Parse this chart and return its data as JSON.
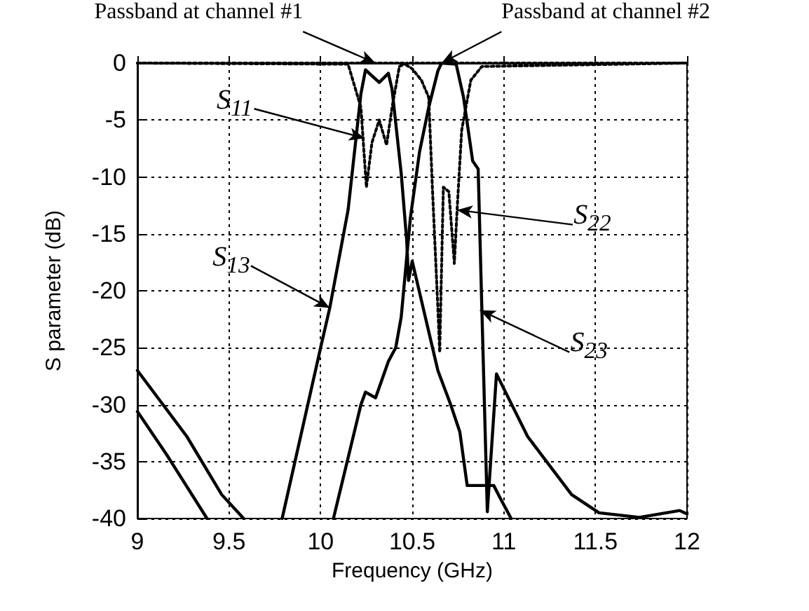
{
  "chart_data": {
    "type": "line",
    "xlabel": "Frequency (GHz)",
    "ylabel": "S parameter (dB)",
    "xlim": [
      9,
      12
    ],
    "xticks": [
      9,
      9.5,
      10,
      10.5,
      11,
      11.5,
      12
    ],
    "ylim": [
      -40,
      0
    ],
    "yticks": [
      0,
      -5,
      -10,
      -15,
      -20,
      -25,
      -30,
      -35,
      -40
    ],
    "grid": true,
    "marker": "none",
    "series": [
      {
        "color": "#000000",
        "line_style": "dotted",
        "x": [
          9,
          10.15,
          10.22,
          10.25,
          10.28,
          10.32,
          10.36,
          10.39,
          10.43,
          10.47,
          12
        ],
        "values": [
          0,
          -0.1,
          -3.9,
          -10.9,
          -7,
          -5,
          -7.2,
          -3.9,
          -0.3,
          0,
          0
        ]
      },
      {
        "color": "#000000",
        "line_style": "dotted",
        "x": [
          9,
          10.45,
          10.5,
          10.55,
          10.59,
          10.61,
          10.64,
          10.65,
          10.67,
          10.7,
          10.73,
          10.745,
          10.77,
          10.82,
          10.88,
          12
        ],
        "values": [
          0,
          0,
          -0.5,
          -1.5,
          -3,
          -10.9,
          -21.5,
          -25.4,
          -10.9,
          -11.3,
          -17.6,
          -12.9,
          -5.9,
          -1.5,
          -0.3,
          0
        ]
      },
      {
        "color": "#000000",
        "line_style": "solid",
        "x": [
          9,
          9.16,
          9.38,
          9.6,
          9.79,
          10.0,
          10.05,
          10.15,
          10.22,
          10.245,
          10.32,
          10.37,
          10.39,
          10.44,
          10.47,
          10.48,
          10.5,
          10.64,
          10.71,
          10.76,
          10.8,
          10.945,
          10.98,
          11.04
        ],
        "values": [
          -30.6,
          -34.4,
          -40,
          null,
          -40,
          -25,
          -21.5,
          -12.9,
          -2.7,
          -0.6,
          -1.7,
          -0.9,
          -2.3,
          -9.7,
          -15.6,
          -19.1,
          -17.4,
          -27,
          -30,
          -32.4,
          -37.1,
          -37.1,
          -38.2,
          -40
        ]
      },
      {
        "color": "#000000",
        "line_style": "solid",
        "x": [
          9,
          9.27,
          9.46,
          9.58,
          9.8,
          10.07,
          10.22,
          10.245,
          10.3,
          10.37,
          10.41,
          10.44,
          10.49,
          10.54,
          10.59,
          10.64,
          10.66,
          10.74,
          10.78,
          10.83,
          10.86,
          10.88,
          10.91,
          10.96,
          11.13,
          11.37,
          11.52,
          11.74,
          11.96,
          12
        ],
        "values": [
          -27,
          -32.8,
          -37.9,
          -40,
          null,
          -40,
          -30,
          -28.9,
          -29.4,
          -26.2,
          -25,
          -22.3,
          -13.6,
          -7.8,
          -3.9,
          -0.7,
          0,
          -0.1,
          -3,
          -8.6,
          -9.3,
          -21.5,
          -39.4,
          -27.3,
          -32.8,
          -37.9,
          -39.5,
          -39.9,
          -39.3,
          -39.6
        ]
      }
    ],
    "annotations": [
      {
        "text": "Passband at channel #1",
        "x": 10.3,
        "y": 0
      },
      {
        "text": "Passband at channel #2",
        "x": 10.66,
        "y": 0
      },
      {
        "text": "S$_{11}$",
        "x": 10.24,
        "y": -6.6
      },
      {
        "text": "S$_{13}$",
        "x": 10.05,
        "y": -21.5
      },
      {
        "text": "S$_{22}$",
        "x": 10.745,
        "y": -12.9
      },
      {
        "text": "S$_{23}$",
        "x": 10.87,
        "y": -21.7
      }
    ]
  }
}
